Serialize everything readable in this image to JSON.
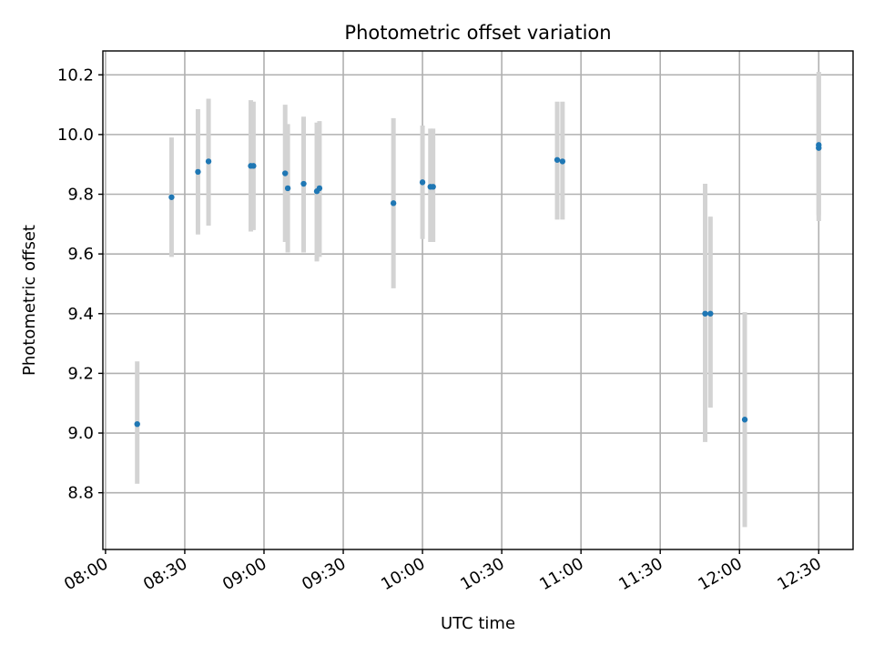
{
  "chart_data": {
    "type": "scatter",
    "title": "Photometric offset variation",
    "xlabel": "UTC time",
    "ylabel": "Photometric offset",
    "x_unit": "time of day (UTC)",
    "x_ticks": [
      "08:00",
      "08:30",
      "09:00",
      "09:30",
      "10:00",
      "10:30",
      "11:00",
      "11:30",
      "12:00",
      "12:30"
    ],
    "y_ticks": [
      "8.8",
      "9.0",
      "9.2",
      "9.4",
      "9.6",
      "9.8",
      "10.0",
      "10.2"
    ],
    "xlim": [
      "07:59",
      "12:43"
    ],
    "ylim": [
      8.61,
      10.28
    ],
    "grid": true,
    "colors": {
      "points": "#1f77b4",
      "error_bars": "#d3d3d3",
      "grid": "#b0b0b0"
    },
    "points": [
      {
        "x": "08:12",
        "y": 9.03,
        "ylow": 8.83,
        "yhigh": 9.24
      },
      {
        "x": "08:25",
        "y": 9.79,
        "ylow": 9.59,
        "yhigh": 9.99
      },
      {
        "x": "08:35",
        "y": 9.875,
        "ylow": 9.665,
        "yhigh": 10.085
      },
      {
        "x": "08:39",
        "y": 9.91,
        "ylow": 9.695,
        "yhigh": 10.12
      },
      {
        "x": "08:55",
        "y": 9.895,
        "ylow": 9.675,
        "yhigh": 10.115
      },
      {
        "x": "08:56",
        "y": 9.895,
        "ylow": 9.68,
        "yhigh": 10.11
      },
      {
        "x": "09:08",
        "y": 9.87,
        "ylow": 9.64,
        "yhigh": 10.1
      },
      {
        "x": "09:09",
        "y": 9.82,
        "ylow": 9.605,
        "yhigh": 10.035
      },
      {
        "x": "09:15",
        "y": 9.835,
        "ylow": 9.605,
        "yhigh": 10.06
      },
      {
        "x": "09:20",
        "y": 9.81,
        "ylow": 9.575,
        "yhigh": 10.04
      },
      {
        "x": "09:21",
        "y": 9.82,
        "ylow": 9.59,
        "yhigh": 10.045
      },
      {
        "x": "09:49",
        "y": 9.77,
        "ylow": 9.485,
        "yhigh": 10.055
      },
      {
        "x": "10:00",
        "y": 9.84,
        "ylow": 9.65,
        "yhigh": 10.03
      },
      {
        "x": "10:03",
        "y": 9.825,
        "ylow": 9.64,
        "yhigh": 10.02
      },
      {
        "x": "10:04",
        "y": 9.825,
        "ylow": 9.64,
        "yhigh": 10.02
      },
      {
        "x": "10:51",
        "y": 9.915,
        "ylow": 9.715,
        "yhigh": 10.11
      },
      {
        "x": "10:53",
        "y": 9.91,
        "ylow": 9.715,
        "yhigh": 10.11
      },
      {
        "x": "11:47",
        "y": 9.4,
        "ylow": 8.97,
        "yhigh": 9.835
      },
      {
        "x": "11:49",
        "y": 9.4,
        "ylow": 9.085,
        "yhigh": 9.725
      },
      {
        "x": "12:02",
        "y": 9.045,
        "ylow": 8.685,
        "yhigh": 9.405
      },
      {
        "x": "12:30",
        "y": 9.955,
        "ylow": 9.71,
        "yhigh": 10.2
      },
      {
        "x": "12:30",
        "y": 9.965,
        "ylow": 9.73,
        "yhigh": 10.21
      }
    ]
  }
}
